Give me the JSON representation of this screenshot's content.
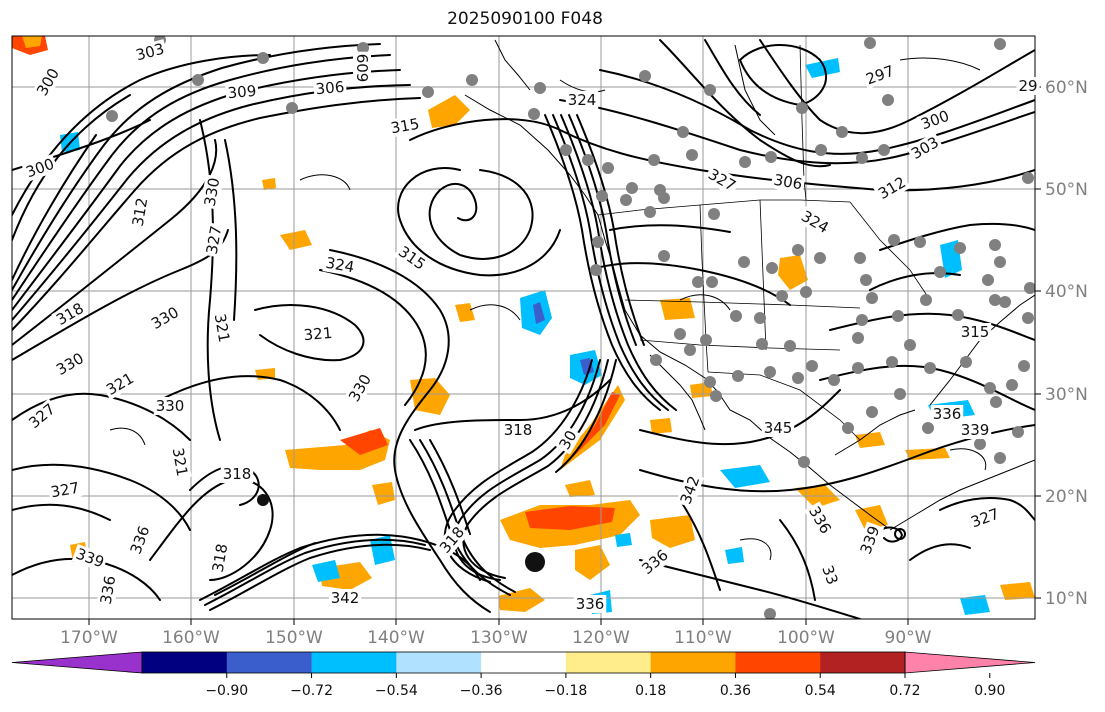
{
  "title": "2025090100 F048",
  "lon_labels": [
    "170°W",
    "160°W",
    "150°W",
    "140°W",
    "130°W",
    "120°W",
    "110°W",
    "100°W",
    "90°W"
  ],
  "lat_labels": [
    "60°N",
    "50°N",
    "40°N",
    "30°N",
    "20°N",
    "10°N"
  ],
  "colorbar": {
    "labels": [
      "−0.90",
      "−0.72",
      "−0.54",
      "−0.36",
      "−0.18",
      "0.18",
      "0.36",
      "0.54",
      "0.72",
      "0.90"
    ],
    "colors": [
      "#9932cc",
      "#000080",
      "#3a5fcd",
      "#00bfff",
      "#b0e2ff",
      "#ffffff",
      "#ffec8b",
      "#ffa500",
      "#ff4500",
      "#b22222",
      "#ff82ab"
    ]
  },
  "contour_labels": [
    {
      "text": "303"
    },
    {
      "text": "300"
    },
    {
      "text": "309"
    },
    {
      "text": "306"
    },
    {
      "text": "315"
    },
    {
      "text": "324"
    },
    {
      "text": "609"
    },
    {
      "text": "297"
    },
    {
      "text": "300"
    },
    {
      "text": "303"
    },
    {
      "text": "29"
    },
    {
      "text": "300"
    },
    {
      "text": "312"
    },
    {
      "text": "330"
    },
    {
      "text": "327"
    },
    {
      "text": "315"
    },
    {
      "text": "324"
    },
    {
      "text": "327"
    },
    {
      "text": "306"
    },
    {
      "text": "312"
    },
    {
      "text": "324"
    },
    {
      "text": "315"
    },
    {
      "text": "318"
    },
    {
      "text": "330"
    },
    {
      "text": "321"
    },
    {
      "text": "321"
    },
    {
      "text": "330"
    },
    {
      "text": "321"
    },
    {
      "text": "327"
    },
    {
      "text": "330"
    },
    {
      "text": "321"
    },
    {
      "text": "330"
    },
    {
      "text": "318"
    },
    {
      "text": "327"
    },
    {
      "text": "318"
    },
    {
      "text": "30"
    },
    {
      "text": "345"
    },
    {
      "text": "339"
    },
    {
      "text": "336"
    },
    {
      "text": "339"
    },
    {
      "text": "342"
    },
    {
      "text": "336"
    },
    {
      "text": "336"
    },
    {
      "text": "339"
    },
    {
      "text": "336"
    },
    {
      "text": "318"
    },
    {
      "text": "342"
    },
    {
      "text": "336"
    },
    {
      "text": "327"
    },
    {
      "text": "33"
    },
    {
      "text": "318"
    },
    {
      "text": "336"
    }
  ],
  "station_dot_color": "#808080"
}
